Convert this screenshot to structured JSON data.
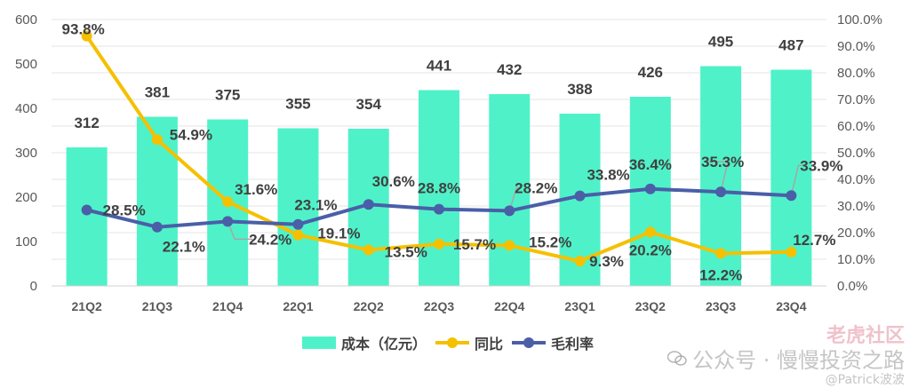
{
  "chart_data": {
    "type": "bar",
    "categories": [
      "21Q2",
      "21Q3",
      "21Q4",
      "22Q1",
      "22Q2",
      "22Q3",
      "22Q4",
      "23Q1",
      "23Q2",
      "23Q3",
      "23Q4"
    ],
    "series": [
      {
        "name": "成本（亿元）",
        "kind": "bar",
        "axis": "left",
        "color": "#4ff2c8",
        "values": [
          312,
          381,
          375,
          355,
          354,
          441,
          432,
          388,
          426,
          495,
          487
        ]
      },
      {
        "name": "同比",
        "kind": "line",
        "axis": "right",
        "color": "#f5c000",
        "values": [
          93.8,
          54.9,
          31.6,
          19.1,
          13.5,
          15.7,
          15.2,
          9.3,
          20.2,
          12.2,
          12.7
        ],
        "labels": [
          "93.8%",
          "54.9%",
          "31.6%",
          "19.1%",
          "13.5%",
          "15.7%",
          "15.2%",
          "9.3%",
          "20.2%",
          "12.2%",
          "12.7%"
        ]
      },
      {
        "name": "毛利率",
        "kind": "line",
        "axis": "right",
        "color": "#4a5fa8",
        "values": [
          28.5,
          22.1,
          24.2,
          23.1,
          30.6,
          28.8,
          28.2,
          33.8,
          36.4,
          35.3,
          33.9
        ],
        "labels": [
          "28.5%",
          "22.1%",
          "24.2%",
          "23.1%",
          "30.6%",
          "28.8%",
          "28.2%",
          "33.8%",
          "36.4%",
          "35.3%",
          "33.9%"
        ]
      }
    ],
    "bar_labels": [
      "312",
      "381",
      "375",
      "355",
      "354",
      "441",
      "432",
      "388",
      "426",
      "495",
      "487"
    ],
    "ylim_left": [
      0,
      600
    ],
    "yticks_left": [
      "0",
      "100",
      "200",
      "300",
      "400",
      "500",
      "600"
    ],
    "ylim_right": [
      0,
      100
    ],
    "yticks_right": [
      "0.0%",
      "10.0%",
      "20.0%",
      "30.0%",
      "40.0%",
      "50.0%",
      "60.0%",
      "70.0%",
      "80.0%",
      "90.0%",
      "100.0%"
    ],
    "grid": true,
    "legend_position": "bottom"
  },
  "legend": {
    "items": [
      {
        "label": "成本（亿元）",
        "type": "bar",
        "color": "#4ff2c8"
      },
      {
        "label": "同比",
        "type": "line",
        "color": "#f5c000"
      },
      {
        "label": "毛利率",
        "type": "line",
        "color": "#4a5fa8"
      }
    ]
  },
  "watermark": {
    "top": "老虎社区",
    "middle": "公众号 · 慢慢投资之路",
    "bottom": "@Patrick波波",
    "icon": "wechat-icon"
  }
}
